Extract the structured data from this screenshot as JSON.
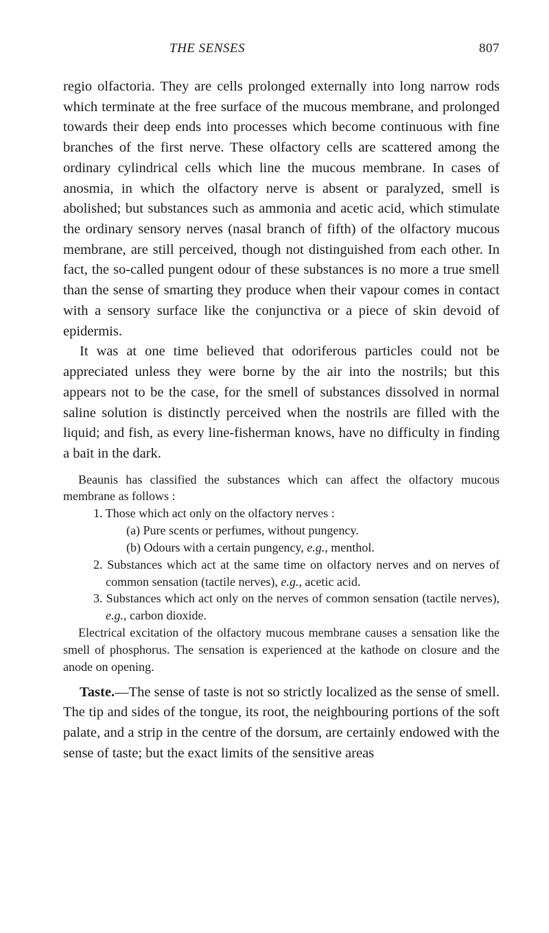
{
  "header": {
    "title": "THE SENSES",
    "pageNumber": "807"
  },
  "paragraphs": {
    "p1": "regio olfactoria. They are cells prolonged externally into long narrow rods which terminate at the free surface of the mucous membrane, and prolonged towards their deep ends into processes which become continuous with fine branches of the first nerve. These olfactory cells are scattered among the ordinary cylindrical cells which line the mucous membrane. In cases of anosmia, in which the olfactory nerve is absent or paralyzed, smell is abolished; but substances such as ammonia and acetic acid, which stimulate the ordinary sensory nerves (nasal branch of fifth) of the olfactory mucous membrane, are still perceived, though not distinguished from each other. In fact, the so-called pungent odour of these substances is no more a true smell than the sense of smarting they produce when their vapour comes in contact with a sensory surface like the conjunctiva or a piece of skin devoid of epidermis.",
    "p2": "It was at one time believed that odoriferous particles could not be appreciated unless they were borne by the air into the nostrils; but this appears not to be the case, for the smell of substances dissolved in normal saline solution is distinctly perceived when the nostrils are filled with the liquid; and fish, as every line-fisherman knows, have no difficulty in finding a bait in the dark.",
    "small_intro": "Beaunis has classified the substances which can affect the olfactory mucous membrane as follows :",
    "item1": "1. Those which act only on the olfactory nerves :",
    "item1a_pre": "(a) Pure scents or perfumes, without pungency.",
    "item1b_pre": "(b) Odours with a certain pungency, ",
    "item1b_eg": "e.g.",
    "item1b_post": ", menthol.",
    "item2_pre": "2. Substances which act at the same time on olfactory nerves and on nerves of common sensation (tactile nerves), ",
    "item2_eg": "e.g.",
    "item2_post": ", acetic acid.",
    "item3_pre": "3. Substances which act only on the nerves of common sensation (tactile nerves), ",
    "item3_eg": "e.g.",
    "item3_post": ", carbon dioxide.",
    "small_close": "Electrical excitation of the olfactory mucous membrane causes a sensation like the smell of phosphorus. The sensation is experienced at the kathode on closure and the anode on opening.",
    "taste_label": "Taste.",
    "taste_body": "—The sense of taste is not so strictly localized as the sense of smell. The tip and sides of the tongue, its root, the neighbouring portions of the soft palate, and a strip in the centre of the dorsum, are certainly endowed with the sense of taste; but the exact limits of the sensitive areas"
  }
}
